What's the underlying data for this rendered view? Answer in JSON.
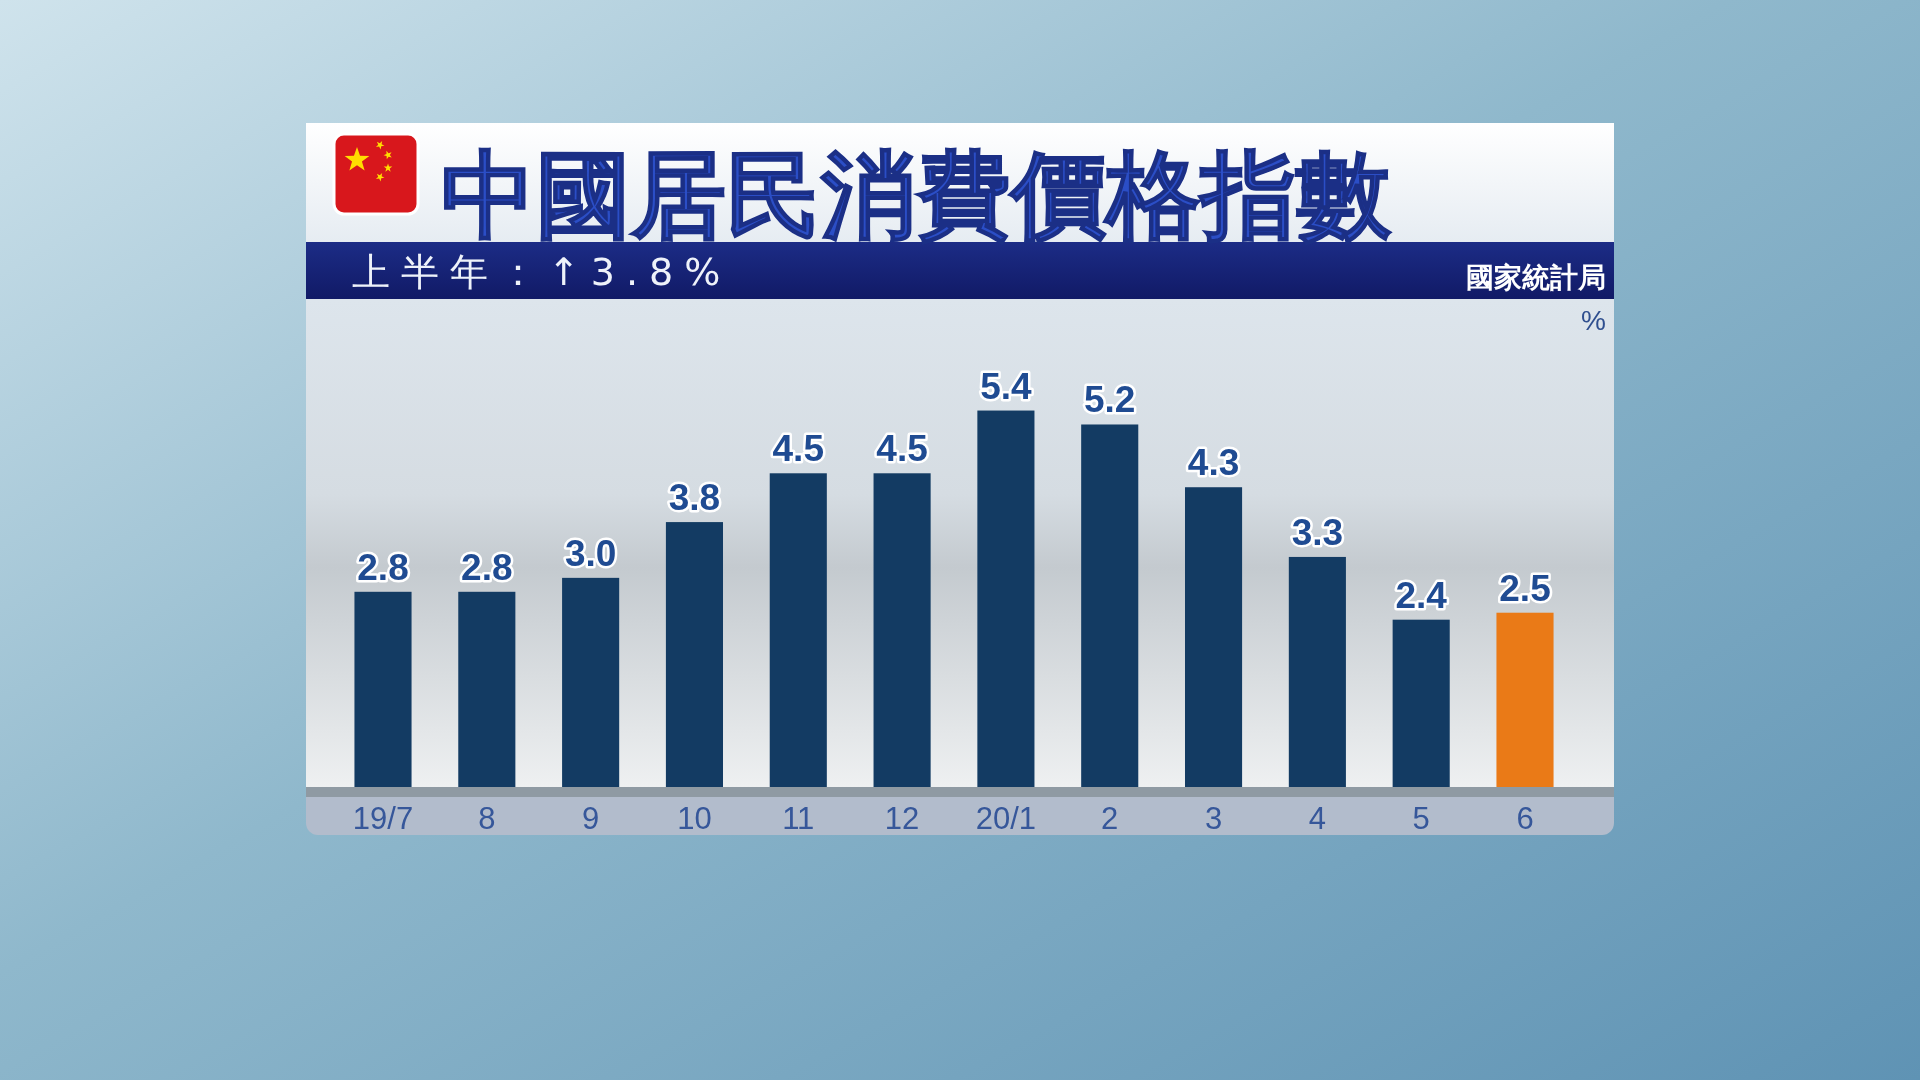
{
  "chart_data": {
    "type": "bar",
    "title": "中國居民消費價格指數",
    "subtitle": "上半年：↑3.8%",
    "ylabel": "%",
    "annotations": [
      "國家統計局"
    ],
    "categories": [
      "19/7",
      "8",
      "9",
      "10",
      "11",
      "12",
      "20/1",
      "2",
      "3",
      "4",
      "5",
      "6"
    ],
    "values": [
      2.8,
      2.8,
      3.0,
      3.8,
      4.5,
      4.5,
      5.4,
      5.2,
      4.3,
      3.3,
      2.4,
      2.5
    ],
    "colors": [
      "#133b63",
      "#133b63",
      "#133b63",
      "#133b63",
      "#133b63",
      "#133b63",
      "#133b63",
      "#133b63",
      "#133b63",
      "#133b63",
      "#133b63",
      "#ea7a17"
    ],
    "value_labels": [
      "2.8",
      "2.8",
      "3.0",
      "3.8",
      "4.5",
      "4.5",
      "5.4",
      "5.2",
      "4.3",
      "3.3",
      "2.4",
      "2.5"
    ],
    "ylim": [
      0,
      7
    ]
  }
}
